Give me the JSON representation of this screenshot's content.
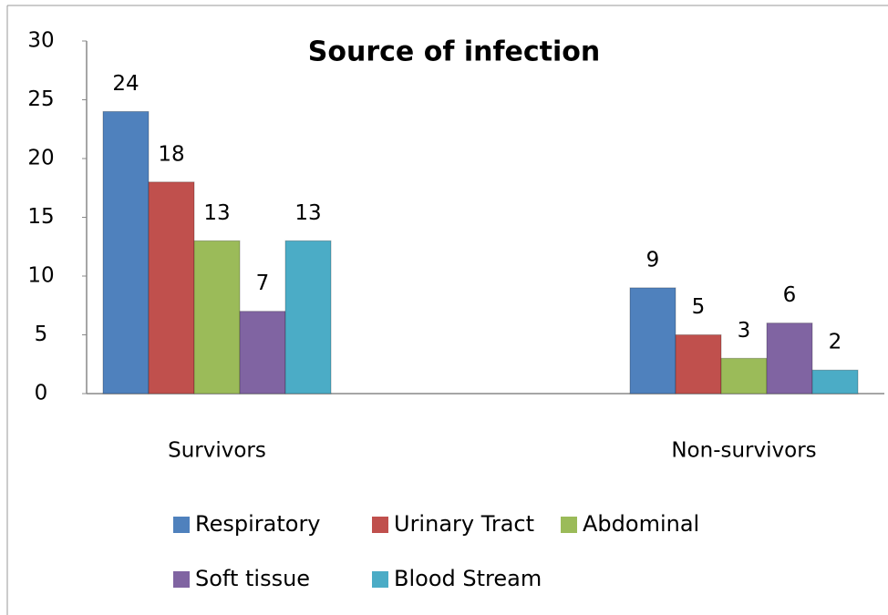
{
  "chart_data": {
    "type": "bar",
    "title": "Source of infection",
    "categories": [
      "Survivors",
      "Non-survivors"
    ],
    "series": [
      {
        "name": "Respiratory",
        "color": "#4f81bd",
        "values": [
          24,
          9
        ]
      },
      {
        "name": "Urinary Tract",
        "color": "#c0504d",
        "values": [
          18,
          5
        ]
      },
      {
        "name": "Abdominal",
        "color": "#9bbb59",
        "values": [
          13,
          3
        ]
      },
      {
        "name": "Soft tissue",
        "color": "#8064a2",
        "values": [
          7,
          6
        ]
      },
      {
        "name": "Blood Stream",
        "color": "#4bacc6",
        "values": [
          13,
          2
        ]
      }
    ],
    "ylim": [
      0,
      30
    ],
    "yticks": [
      0,
      5,
      10,
      15,
      20,
      25,
      30
    ],
    "grid": false,
    "legend": "bottom"
  }
}
